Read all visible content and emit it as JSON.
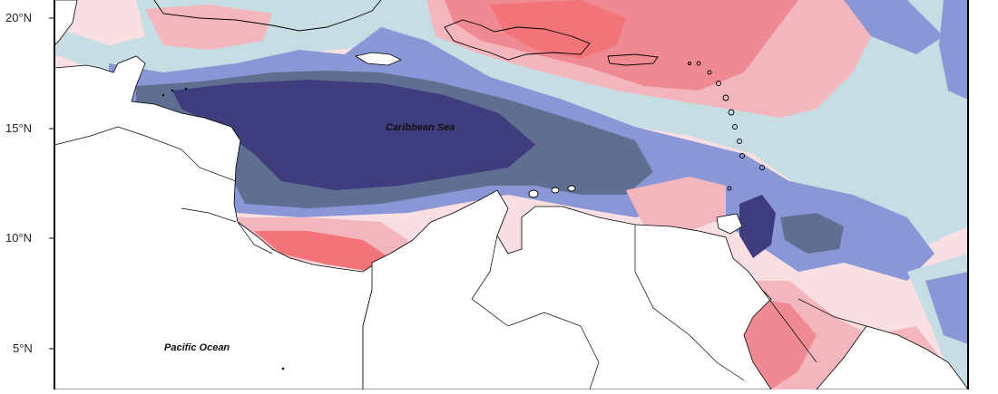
{
  "latitude_labels": [
    "20°N",
    "15°N",
    "10°N",
    "5°N"
  ],
  "places": {
    "caribbean": "Caribbean Sea",
    "pacific": "Pacific Ocean"
  },
  "colors": {
    "deep_navy": "#3f3d7e",
    "slate_blue": "#5f6e91",
    "periwinkle": "#8a97d6",
    "pale_blue": "#c6dde3",
    "pale_pink": "#f9dfe2",
    "light_pink": "#f4b6bd",
    "salmon": "#f08a92",
    "coral": "#f27479",
    "land": "#ffffff",
    "coastline": "#000000"
  }
}
